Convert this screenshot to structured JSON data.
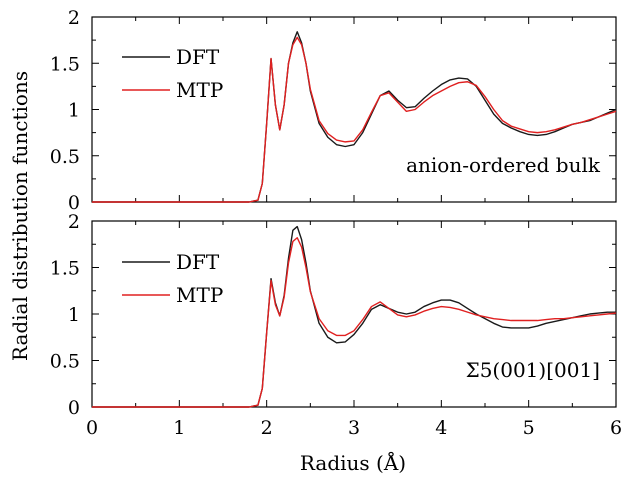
{
  "chart_data": [
    {
      "type": "line",
      "annotation": "anion-ordered bulk",
      "xlim": [
        0,
        6
      ],
      "ylim": [
        0,
        2
      ],
      "x_ticks": [
        "0",
        "1",
        "2",
        "3",
        "4",
        "5",
        "6"
      ],
      "y_ticks": [
        "0",
        "0.5",
        "1",
        "1.5",
        "2"
      ],
      "series": [
        {
          "name": "DFT",
          "color": "#1a1a1a",
          "x": [
            0,
            1.8,
            1.9,
            1.95,
            2.0,
            2.05,
            2.1,
            2.15,
            2.2,
            2.25,
            2.3,
            2.35,
            2.4,
            2.45,
            2.5,
            2.6,
            2.7,
            2.8,
            2.9,
            3.0,
            3.1,
            3.2,
            3.3,
            3.4,
            3.5,
            3.6,
            3.7,
            3.8,
            3.9,
            4.0,
            4.1,
            4.2,
            4.3,
            4.4,
            4.5,
            4.6,
            4.7,
            4.8,
            4.9,
            5.0,
            5.1,
            5.2,
            5.3,
            5.4,
            5.5,
            5.6,
            5.7,
            5.8,
            5.9,
            6.0
          ],
          "y": [
            0,
            0,
            0.02,
            0.2,
            0.85,
            1.55,
            1.05,
            0.78,
            1.05,
            1.5,
            1.72,
            1.84,
            1.72,
            1.5,
            1.2,
            0.85,
            0.7,
            0.62,
            0.6,
            0.62,
            0.75,
            0.95,
            1.15,
            1.2,
            1.1,
            1.02,
            1.03,
            1.12,
            1.2,
            1.27,
            1.32,
            1.34,
            1.33,
            1.25,
            1.1,
            0.95,
            0.85,
            0.8,
            0.76,
            0.73,
            0.72,
            0.73,
            0.76,
            0.8,
            0.84,
            0.86,
            0.88,
            0.92,
            0.96,
            1.0
          ]
        },
        {
          "name": "MTP",
          "color": "#e02020",
          "x": [
            0,
            1.8,
            1.9,
            1.95,
            2.0,
            2.05,
            2.1,
            2.15,
            2.2,
            2.25,
            2.3,
            2.35,
            2.4,
            2.45,
            2.5,
            2.6,
            2.7,
            2.8,
            2.9,
            3.0,
            3.1,
            3.2,
            3.3,
            3.4,
            3.5,
            3.6,
            3.7,
            3.8,
            3.9,
            4.0,
            4.1,
            4.2,
            4.3,
            4.4,
            4.5,
            4.6,
            4.7,
            4.8,
            4.9,
            5.0,
            5.1,
            5.2,
            5.3,
            5.4,
            5.5,
            5.6,
            5.7,
            5.8,
            5.9,
            6.0
          ],
          "y": [
            0,
            0,
            0.02,
            0.2,
            0.85,
            1.55,
            1.05,
            0.78,
            1.05,
            1.5,
            1.7,
            1.78,
            1.7,
            1.5,
            1.22,
            0.88,
            0.74,
            0.67,
            0.65,
            0.66,
            0.78,
            0.97,
            1.15,
            1.18,
            1.08,
            0.98,
            1.0,
            1.08,
            1.15,
            1.2,
            1.25,
            1.29,
            1.3,
            1.26,
            1.14,
            1.0,
            0.88,
            0.82,
            0.79,
            0.76,
            0.75,
            0.76,
            0.78,
            0.81,
            0.84,
            0.86,
            0.89,
            0.92,
            0.95,
            0.98
          ]
        }
      ]
    },
    {
      "type": "line",
      "annotation": "Σ5(001)[001]",
      "xlim": [
        0,
        6
      ],
      "ylim": [
        0,
        2
      ],
      "x_ticks": [
        "0",
        "1",
        "2",
        "3",
        "4",
        "5",
        "6"
      ],
      "y_ticks": [
        "0",
        "0.5",
        "1",
        "1.5",
        "2"
      ],
      "series": [
        {
          "name": "DFT",
          "color": "#1a1a1a",
          "x": [
            0,
            1.8,
            1.9,
            1.95,
            2.0,
            2.05,
            2.1,
            2.15,
            2.2,
            2.25,
            2.3,
            2.35,
            2.4,
            2.45,
            2.5,
            2.6,
            2.7,
            2.8,
            2.9,
            3.0,
            3.1,
            3.2,
            3.3,
            3.4,
            3.5,
            3.6,
            3.7,
            3.8,
            3.9,
            4.0,
            4.1,
            4.2,
            4.3,
            4.4,
            4.5,
            4.6,
            4.7,
            4.8,
            4.9,
            5.0,
            5.1,
            5.2,
            5.3,
            5.4,
            5.5,
            5.6,
            5.7,
            5.8,
            5.9,
            6.0
          ],
          "y": [
            0,
            0,
            0.02,
            0.2,
            0.8,
            1.38,
            1.12,
            0.98,
            1.2,
            1.6,
            1.9,
            1.94,
            1.8,
            1.55,
            1.25,
            0.9,
            0.75,
            0.69,
            0.7,
            0.78,
            0.9,
            1.05,
            1.1,
            1.06,
            1.02,
            1.0,
            1.02,
            1.08,
            1.12,
            1.15,
            1.15,
            1.12,
            1.06,
            1.0,
            0.95,
            0.9,
            0.86,
            0.85,
            0.85,
            0.85,
            0.87,
            0.9,
            0.92,
            0.94,
            0.96,
            0.98,
            1.0,
            1.01,
            1.02,
            1.02
          ]
        },
        {
          "name": "MTP",
          "color": "#e02020",
          "x": [
            0,
            1.8,
            1.9,
            1.95,
            2.0,
            2.05,
            2.1,
            2.15,
            2.2,
            2.25,
            2.3,
            2.35,
            2.4,
            2.45,
            2.5,
            2.6,
            2.7,
            2.8,
            2.9,
            3.0,
            3.1,
            3.2,
            3.3,
            3.4,
            3.5,
            3.6,
            3.7,
            3.8,
            3.9,
            4.0,
            4.1,
            4.2,
            4.3,
            4.4,
            4.5,
            4.6,
            4.7,
            4.8,
            4.9,
            5.0,
            5.1,
            5.2,
            5.3,
            5.4,
            5.5,
            5.6,
            5.7,
            5.8,
            5.9,
            6.0
          ],
          "y": [
            0,
            0,
            0.02,
            0.2,
            0.8,
            1.36,
            1.1,
            0.98,
            1.18,
            1.55,
            1.78,
            1.82,
            1.72,
            1.5,
            1.24,
            0.95,
            0.82,
            0.77,
            0.77,
            0.82,
            0.94,
            1.08,
            1.13,
            1.06,
            0.99,
            0.97,
            0.99,
            1.03,
            1.06,
            1.08,
            1.07,
            1.05,
            1.02,
            0.99,
            0.97,
            0.95,
            0.94,
            0.93,
            0.93,
            0.93,
            0.93,
            0.94,
            0.95,
            0.95,
            0.96,
            0.97,
            0.98,
            0.99,
            1.0,
            1.01
          ]
        }
      ]
    }
  ],
  "x_axis_label": "Radius (Å)",
  "y_axis_label": "Radial distribution functions"
}
